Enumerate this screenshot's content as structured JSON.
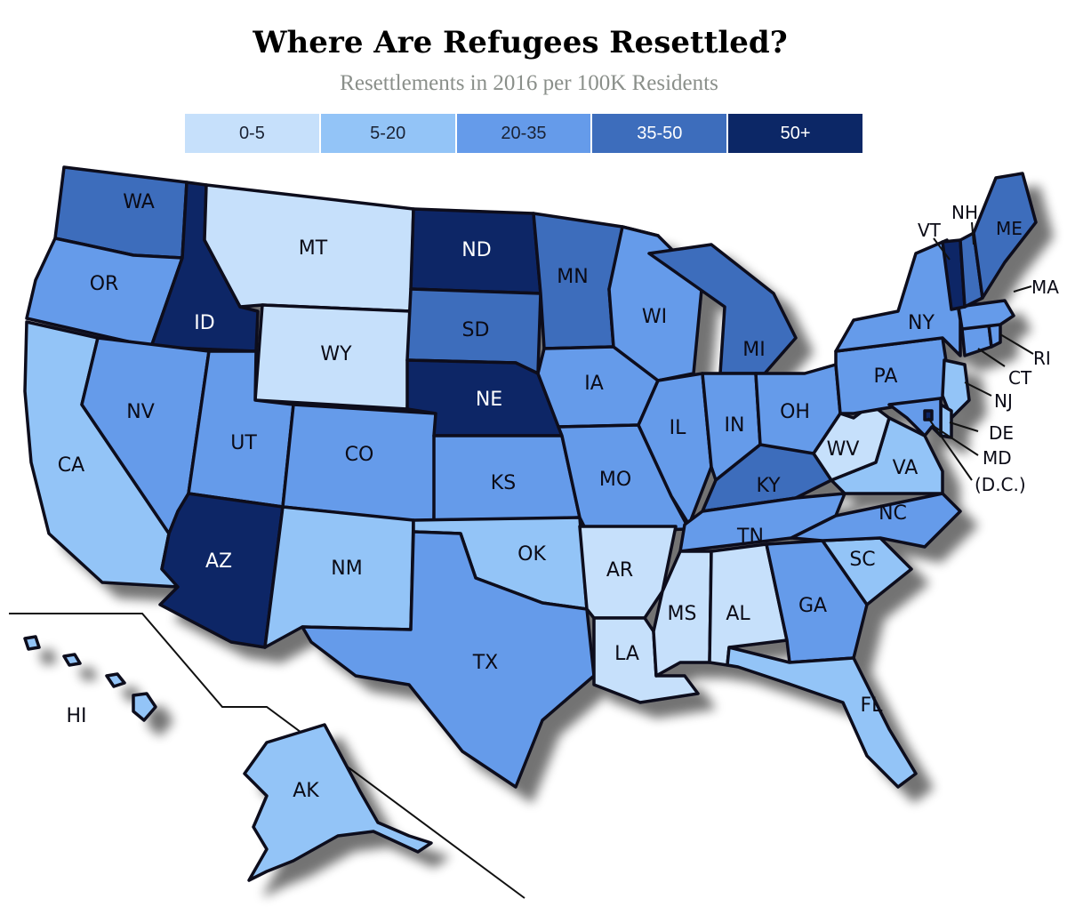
{
  "title": "Where Are Refugees Resettled?",
  "subtitle": "Resettlements in 2016 per 100K Residents",
  "legend": [
    {
      "label": "0-5",
      "color": "#c6e0fb"
    },
    {
      "label": "5-20",
      "color": "#93c4f7"
    },
    {
      "label": "20-35",
      "color": "#659bea"
    },
    {
      "label": "35-50",
      "color": "#3d6dbc"
    },
    {
      "label": "50+",
      "color": "#0c2766"
    }
  ],
  "states": {
    "WA": {
      "label": "WA",
      "bin": "35-50"
    },
    "OR": {
      "label": "OR",
      "bin": "20-35"
    },
    "CA": {
      "label": "CA",
      "bin": "5-20"
    },
    "ID": {
      "label": "ID",
      "bin": "50+"
    },
    "NV": {
      "label": "NV",
      "bin": "20-35"
    },
    "MT": {
      "label": "MT",
      "bin": "0-5"
    },
    "WY": {
      "label": "WY",
      "bin": "0-5"
    },
    "UT": {
      "label": "UT",
      "bin": "20-35"
    },
    "AZ": {
      "label": "AZ",
      "bin": "50+"
    },
    "CO": {
      "label": "CO",
      "bin": "20-35"
    },
    "NM": {
      "label": "NM",
      "bin": "5-20"
    },
    "ND": {
      "label": "ND",
      "bin": "50+"
    },
    "SD": {
      "label": "SD",
      "bin": "35-50"
    },
    "NE": {
      "label": "NE",
      "bin": "50+"
    },
    "KS": {
      "label": "KS",
      "bin": "20-35"
    },
    "OK": {
      "label": "OK",
      "bin": "5-20"
    },
    "TX": {
      "label": "TX",
      "bin": "20-35"
    },
    "MN": {
      "label": "MN",
      "bin": "35-50"
    },
    "IA": {
      "label": "IA",
      "bin": "20-35"
    },
    "MO": {
      "label": "MO",
      "bin": "20-35"
    },
    "AR": {
      "label": "AR",
      "bin": "0-5"
    },
    "LA": {
      "label": "LA",
      "bin": "0-5"
    },
    "WI": {
      "label": "WI",
      "bin": "20-35"
    },
    "IL": {
      "label": "IL",
      "bin": "20-35"
    },
    "MI": {
      "label": "MI",
      "bin": "35-50"
    },
    "IN": {
      "label": "IN",
      "bin": "20-35"
    },
    "OH": {
      "label": "OH",
      "bin": "20-35"
    },
    "KY": {
      "label": "KY",
      "bin": "35-50"
    },
    "TN": {
      "label": "TN",
      "bin": "20-35"
    },
    "MS": {
      "label": "MS",
      "bin": "0-5"
    },
    "AL": {
      "label": "AL",
      "bin": "0-5"
    },
    "GA": {
      "label": "GA",
      "bin": "20-35"
    },
    "FL": {
      "label": "FL",
      "bin": "5-20"
    },
    "SC": {
      "label": "SC",
      "bin": "5-20"
    },
    "NC": {
      "label": "NC",
      "bin": "20-35"
    },
    "VA": {
      "label": "VA",
      "bin": "5-20"
    },
    "WV": {
      "label": "WV",
      "bin": "0-5"
    },
    "PA": {
      "label": "PA",
      "bin": "20-35"
    },
    "NY": {
      "label": "NY",
      "bin": "20-35"
    },
    "NJ": {
      "label": "NJ",
      "bin": "5-20"
    },
    "DE": {
      "label": "DE",
      "bin": "5-20"
    },
    "MD": {
      "label": "MD",
      "bin": "20-35"
    },
    "DC": {
      "label": "(D.C.)",
      "bin": "50+"
    },
    "CT": {
      "label": "CT",
      "bin": "20-35"
    },
    "RI": {
      "label": "RI",
      "bin": "20-35"
    },
    "MA": {
      "label": "MA",
      "bin": "20-35"
    },
    "VT": {
      "label": "VT",
      "bin": "50+"
    },
    "NH": {
      "label": "NH",
      "bin": "35-50"
    },
    "ME": {
      "label": "ME",
      "bin": "35-50"
    },
    "AK": {
      "label": "AK",
      "bin": "5-20"
    },
    "HI": {
      "label": "HI",
      "bin": "5-20"
    }
  }
}
